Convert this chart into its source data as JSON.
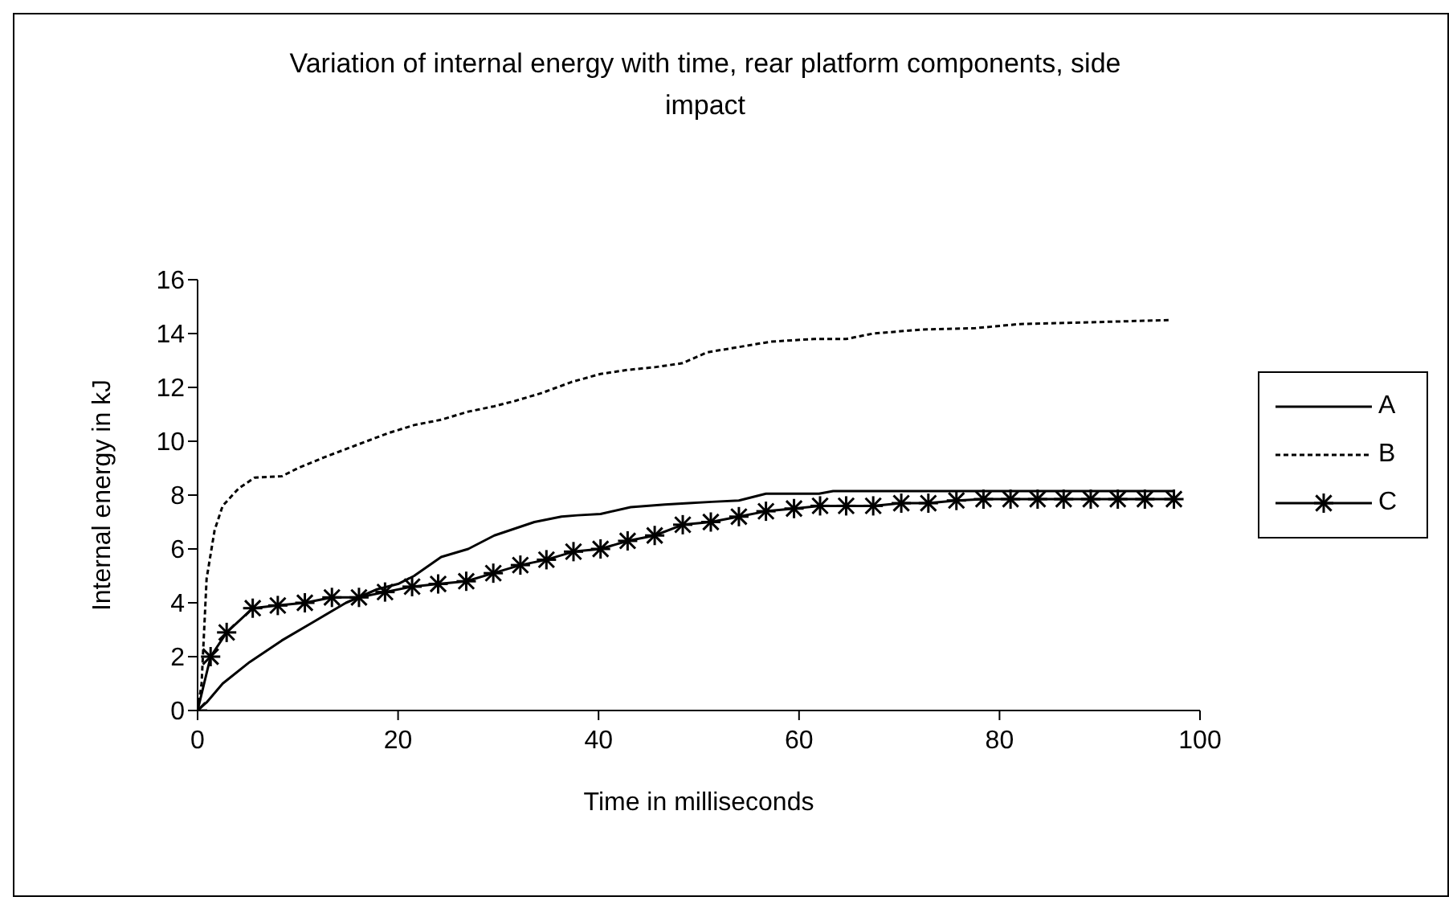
{
  "chart_data": {
    "type": "line",
    "title": "Variation of internal energy with time, rear platform components, side impact",
    "xlabel": "Time in milliseconds",
    "ylabel": "Internal energy in kJ",
    "xlim": [
      0,
      100
    ],
    "xticks": [
      0,
      20,
      40,
      60,
      80,
      100
    ],
    "ylim": [
      0,
      16
    ],
    "yticks": [
      0,
      2,
      4,
      6,
      8,
      10,
      12,
      14,
      16
    ],
    "grid": false,
    "legend": "right",
    "series": [
      {
        "name": "A",
        "color": "#000000",
        "line_style": "solid",
        "marker": "none",
        "x": [
          0,
          0.9,
          2.5,
          5.2,
          8.4,
          11.6,
          14.8,
          17.9,
          20,
          21.6,
          24.3,
          27,
          29.6,
          33.6,
          36.3,
          37.9,
          40.2,
          43.2,
          46.6,
          49,
          51.3,
          54,
          56.7,
          62,
          63.4,
          97.4
        ],
        "values": [
          0,
          0.3,
          1,
          1.8,
          2.6,
          3.3,
          4,
          4.5,
          4.7,
          5,
          5.7,
          6,
          6.5,
          7,
          7.2,
          7.25,
          7.3,
          7.55,
          7.65,
          7.7,
          7.75,
          7.8,
          8.05,
          8.05,
          8.15,
          8.15
        ]
      },
      {
        "name": "B",
        "color": "#000000",
        "line_style": "dotted",
        "marker": "none",
        "x": [
          0,
          0.4,
          0.9,
          1.7,
          2.5,
          4.1,
          5.7,
          8.4,
          10,
          12.6,
          15.8,
          19,
          21.6,
          24.3,
          27,
          29.6,
          31.7,
          34.4,
          37.3,
          40.2,
          42.9,
          45.6,
          48.4,
          50.8,
          54,
          57.2,
          61.5,
          64.7,
          67.4,
          72.2,
          77.6,
          81.9,
          87.2,
          96.9
        ],
        "values": [
          0,
          1,
          4.9,
          6.7,
          7.6,
          8.25,
          8.65,
          8.7,
          9,
          9.4,
          9.85,
          10.3,
          10.6,
          10.8,
          11.1,
          11.3,
          11.5,
          11.8,
          12.2,
          12.5,
          12.65,
          12.75,
          12.9,
          13.3,
          13.5,
          13.7,
          13.8,
          13.8,
          14,
          14.15,
          14.2,
          14.35,
          14.4,
          14.5
        ]
      },
      {
        "name": "C",
        "color": "#000000",
        "line_style": "solid",
        "marker": "cross",
        "x": [
          0,
          1.3,
          2.9,
          5.5,
          8,
          10.7,
          13.4,
          16.1,
          18.7,
          21.4,
          24,
          26.8,
          29.5,
          32.2,
          34.8,
          37.5,
          40.2,
          42.9,
          45.6,
          48.4,
          51.2,
          54,
          56.7,
          59.5,
          62.1,
          64.7,
          67.4,
          70.2,
          72.9,
          75.7,
          78.4,
          81.1,
          83.8,
          86.4,
          89.1,
          91.8,
          94.5,
          97.4
        ],
        "values": [
          0,
          2,
          2.9,
          3.8,
          3.9,
          4,
          4.2,
          4.2,
          4.4,
          4.6,
          4.7,
          4.8,
          5.1,
          5.4,
          5.6,
          5.9,
          6,
          6.3,
          6.5,
          6.9,
          7,
          7.2,
          7.4,
          7.5,
          7.6,
          7.6,
          7.6,
          7.7,
          7.7,
          7.8,
          7.85,
          7.85,
          7.85,
          7.85,
          7.85,
          7.85,
          7.85,
          7.85
        ]
      }
    ]
  }
}
